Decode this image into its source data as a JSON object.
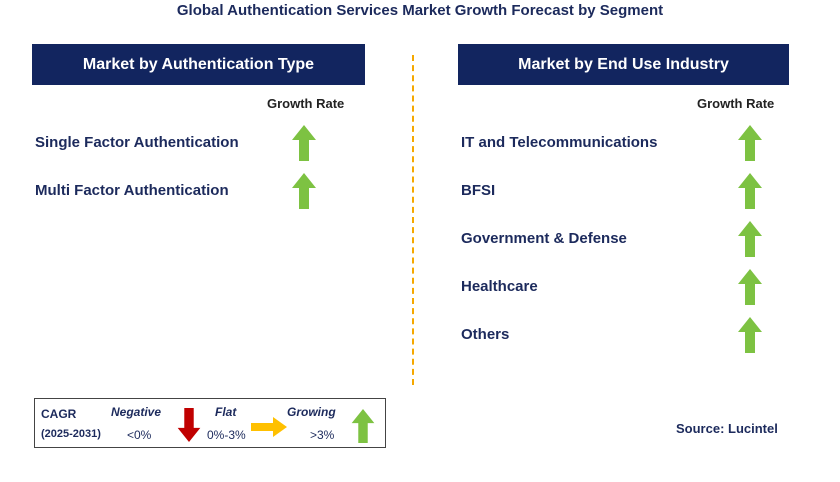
{
  "title": "Global Authentication Services Market Growth Forecast by Segment",
  "colors": {
    "header_bg": "#12255f",
    "text_navy": "#1c2a5c",
    "growing_arrow": "#7dc242",
    "negative_arrow": "#c00000",
    "flat_arrow": "#ffc000",
    "divider": "#f5a800"
  },
  "left_panel": {
    "header": "Market by Authentication Type",
    "growth_rate_label": "Growth Rate",
    "rows": [
      {
        "label": "Single Factor Authentication",
        "icon": "up-arrow-icon"
      },
      {
        "label": "Multi Factor Authentication",
        "icon": "up-arrow-icon"
      }
    ]
  },
  "right_panel": {
    "header": "Market by End Use Industry",
    "growth_rate_label": "Growth Rate",
    "rows": [
      {
        "label": "IT and Telecommunications",
        "icon": "up-arrow-icon"
      },
      {
        "label": "BFSI",
        "icon": "up-arrow-icon"
      },
      {
        "label": "Government & Defense",
        "icon": "up-arrow-icon"
      },
      {
        "label": "Healthcare",
        "icon": "up-arrow-icon"
      },
      {
        "label": "Others",
        "icon": "up-arrow-icon"
      }
    ]
  },
  "legend": {
    "cagr_label": "CAGR",
    "period": "(2025-2031)",
    "negative_label": "Negative",
    "negative_range": "<0%",
    "flat_label": "Flat",
    "flat_range": "0%-3%",
    "growing_label": "Growing",
    "growing_range": ">3%"
  },
  "source": "Source: Lucintel"
}
